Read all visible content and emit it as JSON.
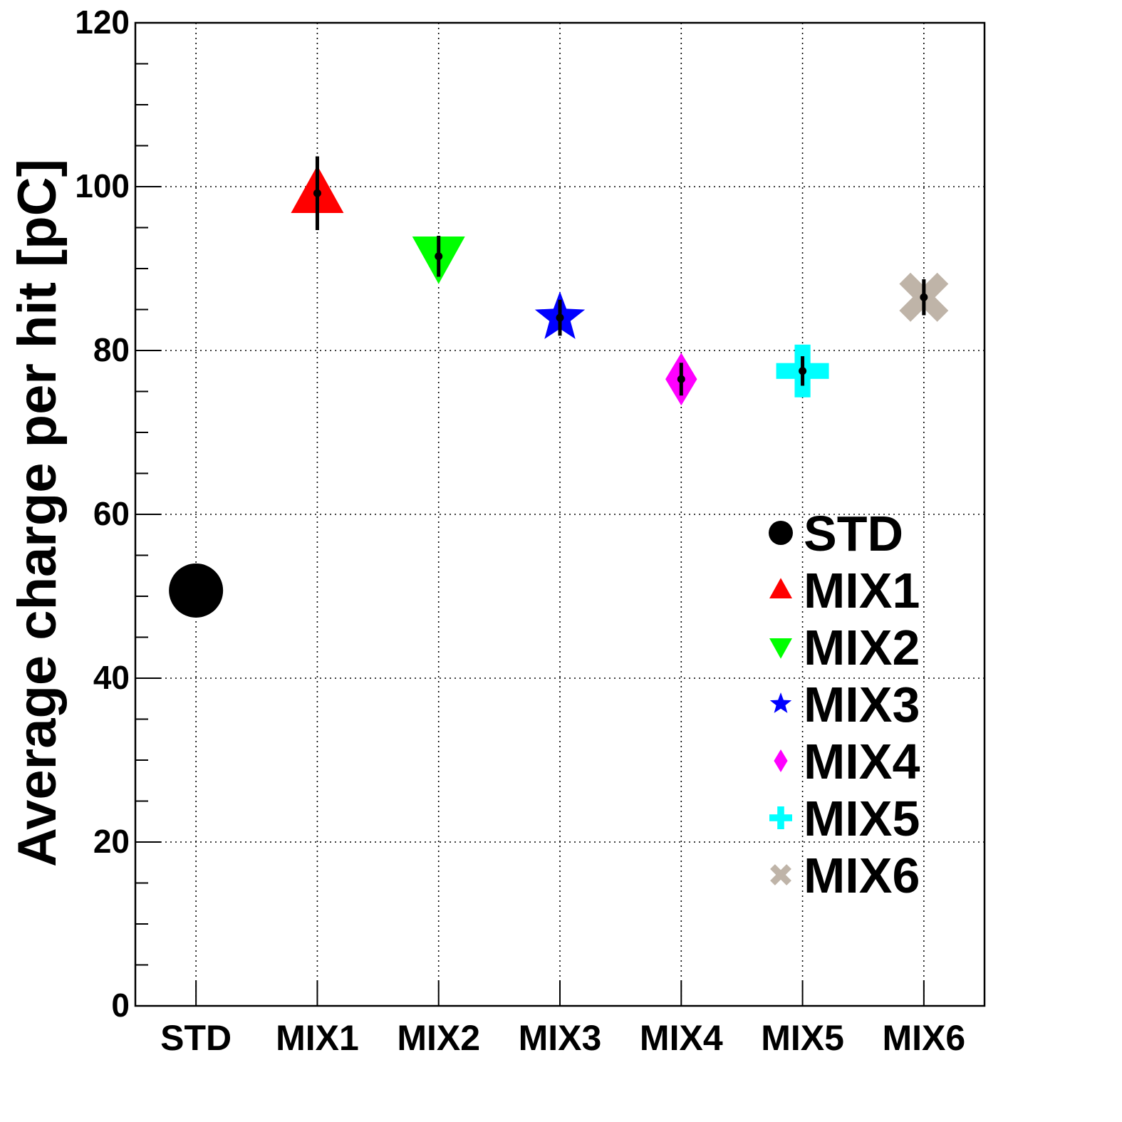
{
  "chart_data": {
    "type": "scatter",
    "title": "",
    "xlabel": "",
    "ylabel": "Average charge per hit [pC]",
    "ylim": [
      0,
      120
    ],
    "y_major_ticks": [
      0,
      20,
      40,
      60,
      80,
      100,
      120
    ],
    "y_minor_step": 5,
    "grid": true,
    "legend_position": "right",
    "categories": [
      "STD",
      "MIX1",
      "MIX2",
      "MIX3",
      "MIX4",
      "MIX5",
      "MIX6"
    ],
    "series": [
      {
        "name": "STD",
        "marker": "circle",
        "color": "#000000",
        "value": 50.7,
        "error": 0.5
      },
      {
        "name": "MIX1",
        "marker": "triangle-up",
        "color": "#ff0000",
        "value": 99.2,
        "error": 4.5
      },
      {
        "name": "MIX2",
        "marker": "triangle-down",
        "color": "#00ff00",
        "value": 91.5,
        "error": 2.5
      },
      {
        "name": "MIX3",
        "marker": "star",
        "color": "#0000ff",
        "value": 84.0,
        "error": 2.2
      },
      {
        "name": "MIX4",
        "marker": "diamond",
        "color": "#ff00ff",
        "value": 76.5,
        "error": 2.0
      },
      {
        "name": "MIX5",
        "marker": "cross",
        "color": "#00ffff",
        "value": 77.5,
        "error": 1.8
      },
      {
        "name": "MIX6",
        "marker": "x",
        "color": "#bfb4a8",
        "value": 86.5,
        "error": 2.2
      }
    ]
  }
}
